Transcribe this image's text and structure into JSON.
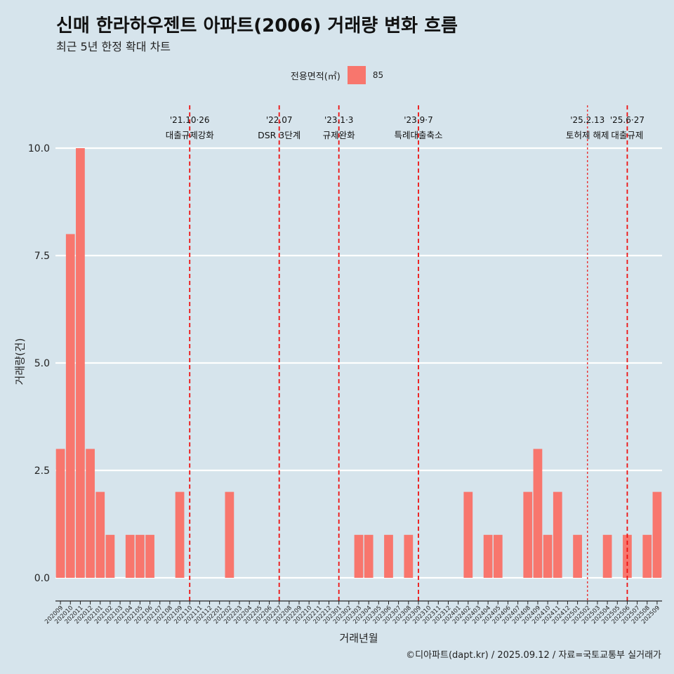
{
  "title": "신매 한라하우젠트 아파트(2006) 거래량 변화 흐름",
  "subtitle": "최근 5년 한정 확대 차트",
  "legend": {
    "title": "전용면적(㎡)",
    "key": "85"
  },
  "caption": "©디아파트(dapt.kr) / 2025.09.12 / 자료=국토교통부 실거래가",
  "chart_data": {
    "type": "bar",
    "xlabel": "거래년월",
    "ylabel": "거래량(건)",
    "ylim": [
      0,
      10
    ],
    "yticks": [
      0,
      2.5,
      5,
      7.5,
      10
    ],
    "ytick_labels": [
      "0.0",
      "2.5",
      "5.0",
      "7.5",
      "10.0"
    ],
    "grid": true,
    "bar_color": "#f8766d",
    "categories": [
      "202009",
      "202010",
      "202011",
      "202012",
      "202101",
      "202102",
      "202103",
      "202104",
      "202105",
      "202106",
      "202107",
      "202108",
      "202109",
      "202110",
      "202111",
      "202112",
      "202201",
      "202202",
      "202203",
      "202204",
      "202205",
      "202206",
      "202207",
      "202208",
      "202209",
      "202210",
      "202211",
      "202212",
      "202301",
      "202302",
      "202303",
      "202304",
      "202305",
      "202306",
      "202307",
      "202308",
      "202309",
      "202310",
      "202311",
      "202312",
      "202401",
      "202402",
      "202403",
      "202404",
      "202405",
      "202406",
      "202407",
      "202408",
      "202409",
      "202410",
      "202411",
      "202412",
      "202501",
      "202502",
      "202503",
      "202504",
      "202505",
      "202506",
      "202507",
      "202508",
      "202509"
    ],
    "series": [
      {
        "name": "85",
        "values": [
          3,
          8,
          10,
          3,
          2,
          1,
          0,
          1,
          1,
          1,
          0,
          0,
          2,
          0,
          0,
          0,
          0,
          2,
          0,
          0,
          0,
          0,
          0,
          0,
          0,
          0,
          0,
          0,
          0,
          0,
          1,
          1,
          0,
          1,
          0,
          1,
          0,
          0,
          0,
          0,
          0,
          2,
          0,
          1,
          1,
          0,
          0,
          2,
          3,
          1,
          2,
          0,
          1,
          0,
          0,
          1,
          0,
          1,
          0,
          1,
          2
        ]
      }
    ],
    "annotations": [
      {
        "date": "'21.10·26",
        "label": "대출규제강화",
        "at": "202110",
        "style": "dashed"
      },
      {
        "date": "'22.07",
        "label": "DSR 3단계",
        "at": "202207",
        "style": "dashed"
      },
      {
        "date": "'23.1·3",
        "label": "규제완화",
        "at": "202301",
        "style": "dashed"
      },
      {
        "date": "'23.9·7",
        "label": "특례대출축소",
        "at": "202309",
        "style": "dashed"
      },
      {
        "date": "'25.2.13",
        "label": "토허제 해제",
        "at": "202502",
        "style": "dotted"
      },
      {
        "date": "'25.6·27",
        "label": "대출규제",
        "at": "202506",
        "style": "dashed"
      }
    ]
  }
}
